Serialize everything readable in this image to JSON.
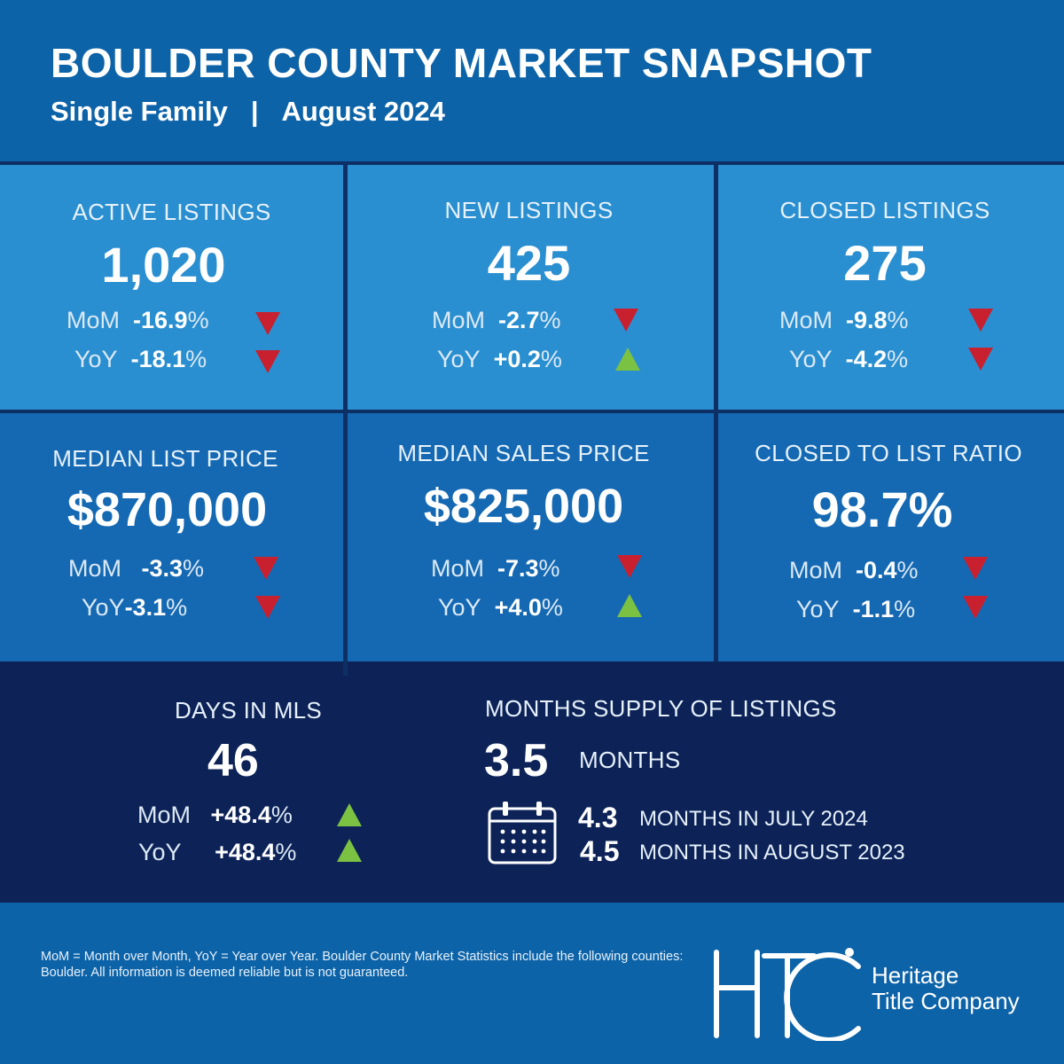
{
  "header": {
    "title": "BOULDER COUNTY MARKET SNAPSHOT",
    "property_type": "Single Family",
    "separator": "|",
    "period": "August 2024"
  },
  "metrics": {
    "active_listings": {
      "label": "ACTIVE LISTINGS",
      "value": "1,020",
      "mom_label": "MoM",
      "mom_value": "-16.9",
      "mom_direction": "down",
      "yoy_label": "YoY",
      "yoy_value": "-18.1",
      "yoy_direction": "down"
    },
    "new_listings": {
      "label": "NEW LISTINGS",
      "value": "425",
      "mom_label": "MoM",
      "mom_value": "-2.7",
      "mom_direction": "down",
      "yoy_label": "YoY",
      "yoy_value": "+0.2",
      "yoy_direction": "up"
    },
    "closed_listings": {
      "label": "CLOSED LISTINGS",
      "value": "275",
      "mom_label": "MoM",
      "mom_value": "-9.8",
      "mom_direction": "down",
      "yoy_label": "YoY",
      "yoy_value": "-4.2",
      "yoy_direction": "down"
    },
    "median_list_price": {
      "label": "MEDIAN LIST PRICE",
      "value": "$870,000",
      "mom_label": "MoM",
      "mom_value": "-3.3",
      "mom_direction": "down",
      "yoy_label": "YoY",
      "yoy_value": "-3.1",
      "yoy_direction": "down"
    },
    "median_sales_price": {
      "label": "MEDIAN SALES PRICE",
      "value": "$825,000",
      "mom_label": "MoM",
      "mom_value": "-7.3",
      "mom_direction": "down",
      "yoy_label": "YoY",
      "yoy_value": "+4.0",
      "yoy_direction": "up"
    },
    "closed_to_list_ratio": {
      "label": "CLOSED TO LIST RATIO",
      "value": "98.7%",
      "mom_label": "MoM",
      "mom_value": "-0.4",
      "mom_direction": "down",
      "yoy_label": "YoY",
      "yoy_value": "-1.1",
      "yoy_direction": "down"
    },
    "days_in_mls": {
      "label": "DAYS IN MLS",
      "value": "46",
      "mom_label": "MoM",
      "mom_value": "+48.4",
      "mom_direction": "up",
      "yoy_label": "YoY",
      "yoy_value": "+48.4",
      "yoy_direction": "up"
    }
  },
  "percent_sign": "%",
  "months_supply": {
    "label": "MONTHS SUPPLY OF LISTINGS",
    "value": "3.5",
    "unit": "MONTHS",
    "icon": "calendar-icon",
    "prior": [
      {
        "value": "4.3",
        "text": "MONTHS IN JULY 2024"
      },
      {
        "value": "4.5",
        "text": "MONTHS IN AUGUST 2023"
      }
    ]
  },
  "footer": {
    "note": "MoM = Month over Month, YoY = Year over Year. Boulder County Market Statistics include the following counties: Boulder. All information is deemed reliable but is not guaranteed.",
    "logo_mark": "HTC",
    "company_line1": "Heritage",
    "company_line2": "Title Company"
  },
  "colors": {
    "header_bg": "#0d63a8",
    "light_tile": "#2a8fd0",
    "mid_tile": "#1569b3",
    "dark_band": "#0d2358",
    "down_arrow": "#c8202f",
    "up_arrow": "#7cc242"
  }
}
